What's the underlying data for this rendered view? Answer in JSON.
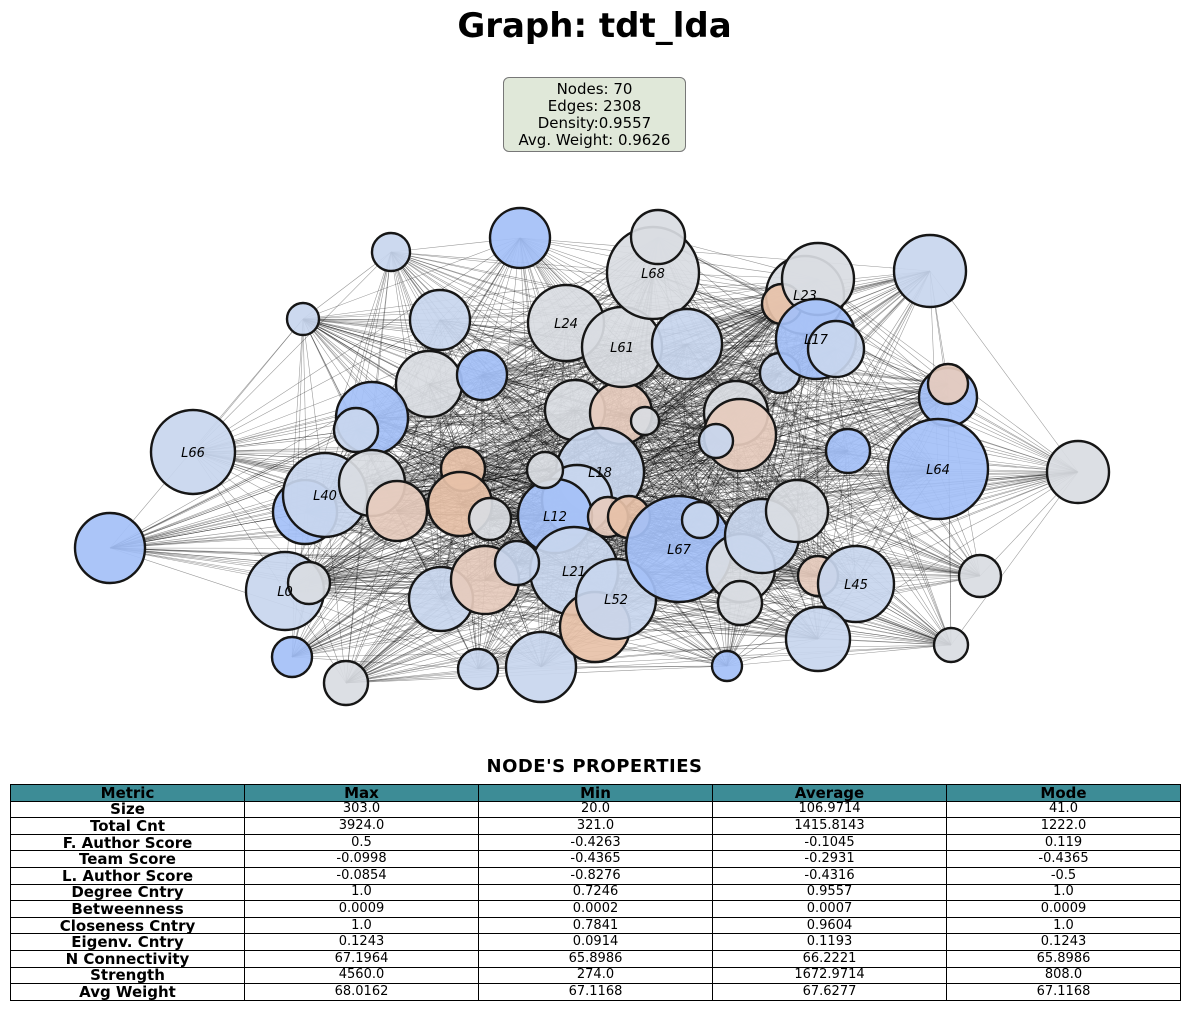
{
  "title": "Graph: tdt_lda",
  "stats": {
    "nodes": "Nodes: 70",
    "edges": "Edges: 2308",
    "density": "Density:0.9557",
    "avg_weight": "Avg. Weight: 0.9626"
  },
  "chart_data": {
    "type": "network",
    "title": "Graph: tdt_lda",
    "node_count": 70,
    "edge_count": 2308,
    "density": 0.9557,
    "avg_weight": 0.9626,
    "labeled_nodes": [
      "L0",
      "L12",
      "L17",
      "L18",
      "L21",
      "L23",
      "L24",
      "L40",
      "L45",
      "L52",
      "L61",
      "L64",
      "L66",
      "L67",
      "L68"
    ],
    "colors": {
      "blue": "#a4c0f7",
      "light_blue": "#c8d6ee",
      "gray": "#d9dce2",
      "peach": "#e6cbbd",
      "salmon": "#e7c1a8",
      "edge": "#000000",
      "header": "#3d8c96",
      "stats_box": "#e0e8d9"
    }
  },
  "table": {
    "title": "NODE'S PROPERTIES",
    "headers": [
      "Metric",
      "Max",
      "Min",
      "Average",
      "Mode"
    ],
    "rows": [
      [
        "Size",
        "303.0",
        "20.0",
        "106.9714",
        "41.0"
      ],
      [
        "Total Cnt",
        "3924.0",
        "321.0",
        "1415.8143",
        "1222.0"
      ],
      [
        "F. Author Score",
        "0.5",
        "-0.4263",
        "-0.1045",
        "0.119"
      ],
      [
        "Team Score",
        "-0.0998",
        "-0.4365",
        "-0.2931",
        "-0.4365"
      ],
      [
        "L. Author Score",
        "-0.0854",
        "-0.8276",
        "-0.4316",
        "-0.5"
      ],
      [
        "Degree Cntry",
        "1.0",
        "0.7246",
        "0.9557",
        "1.0"
      ],
      [
        "Betweenness",
        "0.0009",
        "0.0002",
        "0.0007",
        "0.0009"
      ],
      [
        "Closeness Cntry",
        "1.0",
        "0.7841",
        "0.9604",
        "1.0"
      ],
      [
        "Eigenv. Cntry",
        "0.1243",
        "0.0914",
        "0.1193",
        "0.1243"
      ],
      [
        "N Connectivity",
        "67.1964",
        "65.8986",
        "66.2221",
        "65.8986"
      ],
      [
        "Strength",
        "4560.0",
        "274.0",
        "1672.9714",
        "808.0"
      ],
      [
        "Avg Weight",
        "68.0162",
        "67.1168",
        "67.6277",
        "67.1168"
      ]
    ]
  }
}
